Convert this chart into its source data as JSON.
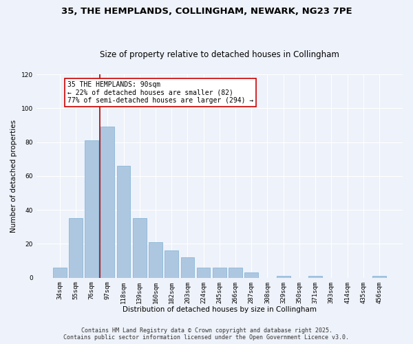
{
  "title_line1": "35, THE HEMPLANDS, COLLINGHAM, NEWARK, NG23 7PE",
  "title_line2": "Size of property relative to detached houses in Collingham",
  "xlabel": "Distribution of detached houses by size in Collingham",
  "ylabel": "Number of detached properties",
  "categories": [
    "34sqm",
    "55sqm",
    "76sqm",
    "97sqm",
    "118sqm",
    "139sqm",
    "160sqm",
    "182sqm",
    "203sqm",
    "224sqm",
    "245sqm",
    "266sqm",
    "287sqm",
    "308sqm",
    "329sqm",
    "350sqm",
    "371sqm",
    "393sqm",
    "414sqm",
    "435sqm",
    "456sqm"
  ],
  "values": [
    6,
    35,
    81,
    89,
    66,
    35,
    21,
    16,
    12,
    6,
    6,
    6,
    3,
    0,
    1,
    0,
    1,
    0,
    0,
    0,
    1
  ],
  "bar_color": "#aec7e0",
  "bar_edge_color": "#7aafd4",
  "vline_index": 3,
  "vline_color": "#aa0000",
  "annotation_text": "35 THE HEMPLANDS: 90sqm\n← 22% of detached houses are smaller (82)\n77% of semi-detached houses are larger (294) →",
  "annotation_box_color": "#ffffff",
  "annotation_box_edge": "#cc0000",
  "ylim": [
    0,
    120
  ],
  "yticks": [
    0,
    20,
    40,
    60,
    80,
    100,
    120
  ],
  "background_color": "#eef2fa",
  "grid_color": "#ffffff",
  "footer_line1": "Contains HM Land Registry data © Crown copyright and database right 2025.",
  "footer_line2": "Contains public sector information licensed under the Open Government Licence v3.0.",
  "title_fontsize": 9.5,
  "subtitle_fontsize": 8.5,
  "axis_label_fontsize": 7.5,
  "tick_fontsize": 6.5,
  "annotation_fontsize": 7,
  "footer_fontsize": 6
}
